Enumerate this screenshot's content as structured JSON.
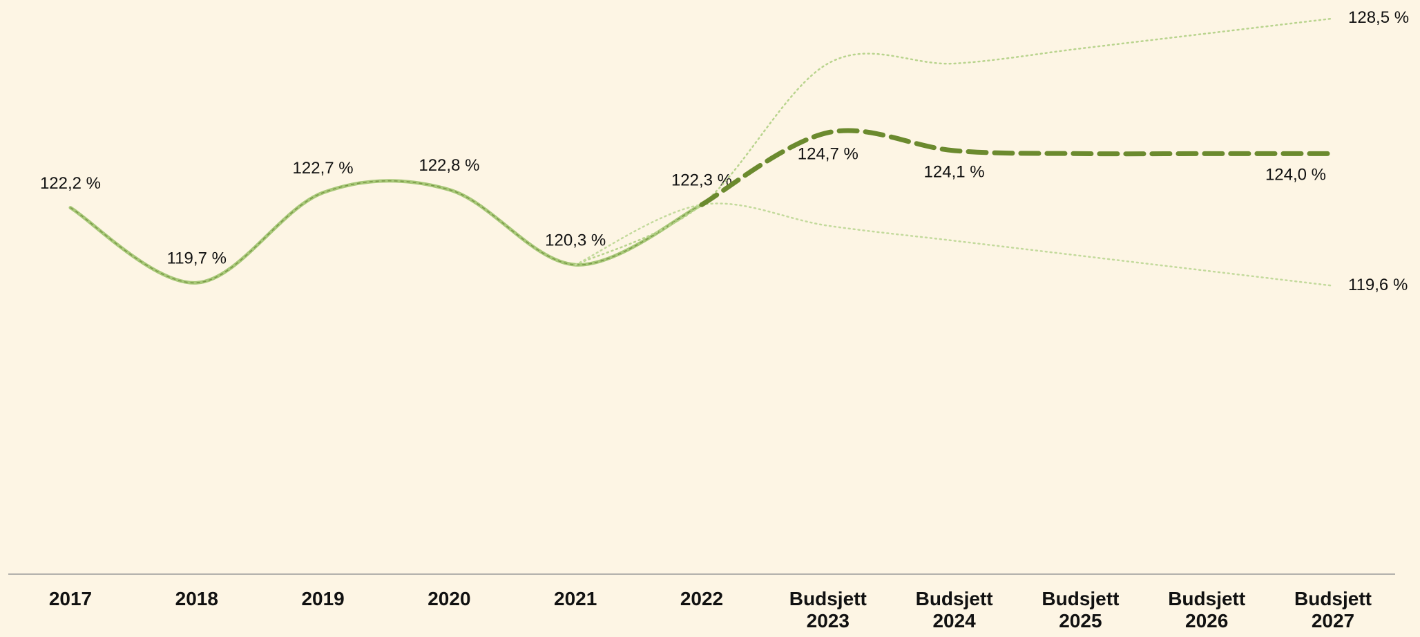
{
  "chart_data": {
    "type": "line",
    "categories": [
      "2017",
      "2018",
      "2019",
      "2020",
      "2021",
      "2022",
      "Budsjett 2023",
      "Budsjett 2024",
      "Budsjett 2025",
      "Budsjett 2026",
      "Budsjett 2027"
    ],
    "series": [
      {
        "color": "#a8c878",
        "values": [
          122.2,
          119.7,
          122.7,
          122.8,
          120.3,
          122.3,
          null,
          null,
          null,
          null,
          null
        ],
        "value_labels": [
          "122,2 %",
          "119,7 %",
          "122,7 %",
          "122,8 %",
          "120,3 %",
          "122,3 %",
          null,
          null,
          null,
          null,
          null
        ]
      },
      {
        "color": "#b9d48e",
        "values": [
          null,
          null,
          null,
          null,
          120.3,
          122.3,
          127.0,
          127.0,
          127.5,
          128.0,
          128.5
        ],
        "value_labels": [
          null,
          null,
          null,
          null,
          null,
          null,
          null,
          null,
          null,
          null,
          "128,5 %"
        ]
      },
      {
        "color": "#c3da9c",
        "values": [
          null,
          null,
          null,
          null,
          120.3,
          122.3,
          121.6,
          121.1,
          120.6,
          120.1,
          119.6
        ],
        "value_labels": [
          null,
          null,
          null,
          null,
          null,
          null,
          null,
          null,
          null,
          null,
          "119,6 %"
        ]
      },
      {
        "color": "#6b8a2e",
        "values": [
          null,
          null,
          null,
          null,
          null,
          122.3,
          124.7,
          124.1,
          124.0,
          124.0,
          124.0
        ],
        "value_labels": [
          null,
          null,
          null,
          null,
          null,
          null,
          "124,7 %",
          "124,1 %",
          null,
          null,
          "124,0 %"
        ]
      }
    ],
    "ylim": [
      110,
      129
    ]
  }
}
